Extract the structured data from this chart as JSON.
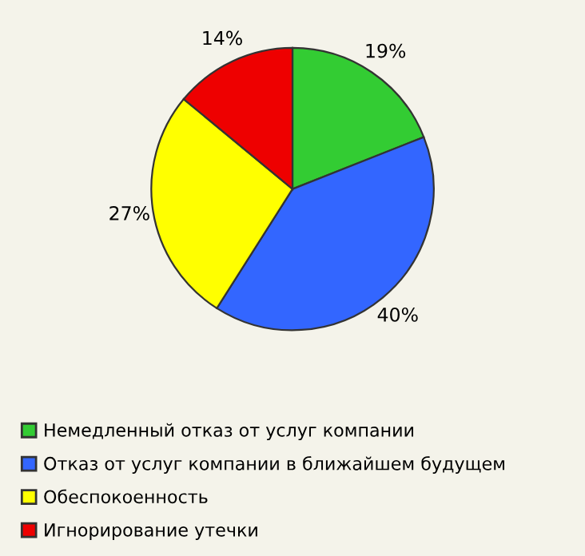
{
  "chart_data": {
    "type": "pie",
    "categories": [
      "Немедленный отказ от услуг компании",
      "Отказ от услуг компании в ближайшем будущем",
      "Обеспокоенность",
      "Игнорирование утечки"
    ],
    "values": [
      19,
      40,
      27,
      14
    ],
    "value_labels": [
      "19%",
      "40%",
      "27%",
      "14%"
    ],
    "colors": [
      "#33cc33",
      "#3366ff",
      "#ffff00",
      "#ee0000"
    ],
    "legend": "bottom"
  }
}
